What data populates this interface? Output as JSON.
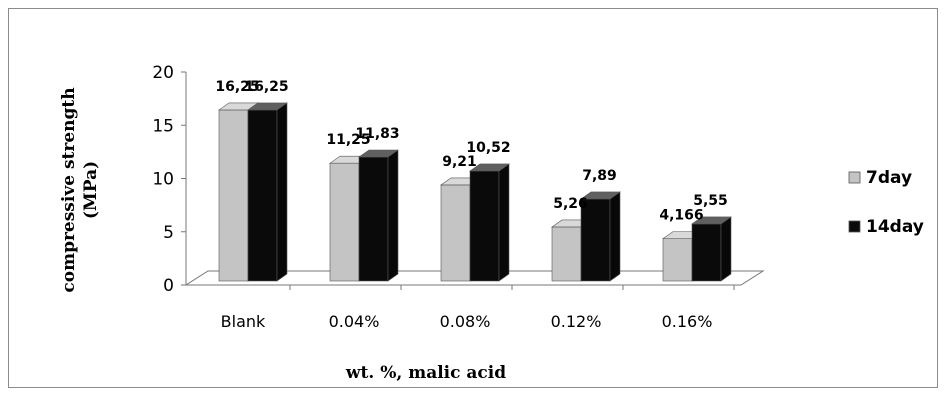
{
  "chart_data": {
    "type": "bar",
    "style": "3d-clustered-column",
    "categories": [
      "Blank",
      "0.04%",
      "0.08%",
      "0.12%",
      "0.16%"
    ],
    "series": [
      {
        "name": "7day",
        "values": [
          16.25,
          11.25,
          9.21,
          5.26,
          4.166
        ],
        "labels": [
          "16,25",
          "11,25",
          "9,21",
          "5,26",
          "4,166"
        ],
        "color": "#c4c4c4"
      },
      {
        "name": "14day",
        "values": [
          16.25,
          11.83,
          10.52,
          7.89,
          5.55
        ],
        "labels": [
          "16,25",
          "11,83",
          "10,52",
          "7,89",
          "5,55"
        ],
        "color": "#0a0a0a"
      }
    ],
    "xlabel": "wt. %, malic acid",
    "ylabel_lines": [
      "compressive strength",
      "(MPa)"
    ],
    "ylim": [
      0,
      20
    ],
    "yticks": [
      0,
      5,
      10,
      15,
      20
    ],
    "grid": false,
    "legend_position": "right"
  }
}
